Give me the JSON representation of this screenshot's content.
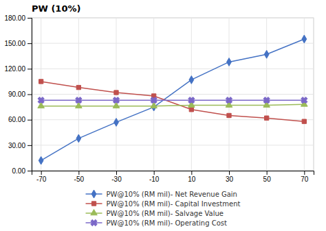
{
  "chart_data": {
    "type": "line",
    "title": "PW (10%)",
    "x": [
      -70,
      -50,
      -30,
      -10,
      10,
      30,
      50,
      70
    ],
    "series": [
      {
        "name": "PW@10% (RM mil)- Net Revenue Gain",
        "color": "#4472C4",
        "marker": "diamond",
        "values": [
          12,
          38,
          57,
          75,
          107,
          128,
          137,
          155
        ]
      },
      {
        "name": "PW@10% (RM mil)- Capital Investment",
        "color": "#C0504D",
        "marker": "square",
        "values": [
          105,
          98,
          92,
          88,
          72,
          65,
          62,
          58
        ]
      },
      {
        "name": "PW@10% (RM mil)- Salvage Value",
        "color": "#9BBB59",
        "marker": "triangle",
        "values": [
          76,
          76,
          76,
          76,
          77,
          77,
          77,
          78
        ]
      },
      {
        "name": "PW@10% (RM mil)- Operating Cost",
        "color": "#7B68C8",
        "marker": "x",
        "values": [
          83,
          83,
          83,
          83,
          83,
          83,
          83,
          83
        ]
      }
    ],
    "xlim": [
      -75,
      75
    ],
    "xticks": [
      -70,
      -50,
      -30,
      -10,
      10,
      30,
      50,
      70
    ],
    "ylim": [
      0.0,
      180.0
    ],
    "yticks": [
      {
        "value": 0.0,
        "label": "0.00"
      },
      {
        "value": 30.0,
        "label": "30.00"
      },
      {
        "value": 60.0,
        "label": "60.00"
      },
      {
        "value": 90.0,
        "label": "90.00"
      },
      {
        "value": 120.0,
        "label": "120.00"
      },
      {
        "value": 150.0,
        "label": "150.00"
      },
      {
        "value": 180.0,
        "label": "180.00"
      }
    ],
    "grid": true,
    "legend": "bottom"
  }
}
